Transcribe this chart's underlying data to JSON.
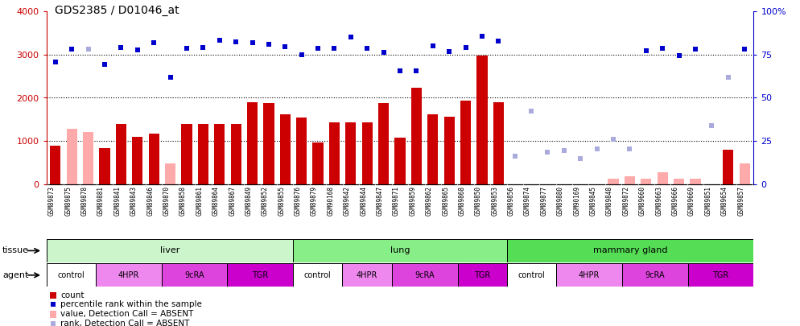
{
  "title": "GDS2385 / D01046_at",
  "samples": [
    "GSM89873",
    "GSM89875",
    "GSM89878",
    "GSM89881",
    "GSM89841",
    "GSM89843",
    "GSM89846",
    "GSM89870",
    "GSM89858",
    "GSM89861",
    "GSM89864",
    "GSM89867",
    "GSM89849",
    "GSM89852",
    "GSM89855",
    "GSM89876",
    "GSM89879",
    "GSM90168",
    "GSM89642",
    "GSM89844",
    "GSM89847",
    "GSM89871",
    "GSM89859",
    "GSM89862",
    "GSM89865",
    "GSM89868",
    "GSM89850",
    "GSM89853",
    "GSM89856",
    "GSM89874",
    "GSM89877",
    "GSM89880",
    "GSM90169",
    "GSM89845",
    "GSM89848",
    "GSM89872",
    "GSM89660",
    "GSM89663",
    "GSM89666",
    "GSM89669",
    "GSM89851",
    "GSM89654",
    "GSM89857"
  ],
  "count": [
    900,
    0,
    0,
    830,
    1390,
    1100,
    1170,
    0,
    1400,
    1400,
    1400,
    1400,
    1900,
    1870,
    1620,
    1540,
    960,
    1440,
    1440,
    1440,
    1870,
    1080,
    2230,
    1610,
    1560,
    1930,
    2980,
    1900,
    0,
    0,
    0,
    0,
    0,
    0,
    0,
    0,
    0,
    0,
    0,
    0,
    0,
    790,
    0
  ],
  "count_absent": [
    0,
    1290,
    1200,
    0,
    0,
    0,
    0,
    490,
    0,
    0,
    0,
    0,
    0,
    0,
    0,
    0,
    0,
    0,
    0,
    0,
    0,
    0,
    0,
    0,
    0,
    0,
    0,
    0,
    0,
    0,
    0,
    0,
    0,
    0,
    120,
    180,
    120,
    280,
    120,
    120,
    0,
    0,
    490
  ],
  "percentile": [
    2820,
    3120,
    0,
    2780,
    3170,
    3100,
    3280,
    2480,
    3150,
    3160,
    3330,
    3300,
    3280,
    3230,
    3180,
    3000,
    3150,
    3140,
    3400,
    3140,
    3050,
    2630,
    2630,
    3200,
    3070,
    3170,
    3430,
    3310,
    0,
    0,
    0,
    0,
    0,
    0,
    0,
    0,
    3090,
    3140,
    2970,
    3120,
    0,
    0,
    3120
  ],
  "percentile_absent": [
    0,
    0,
    3120,
    0,
    0,
    0,
    0,
    0,
    0,
    0,
    0,
    0,
    0,
    0,
    0,
    0,
    0,
    0,
    0,
    0,
    0,
    0,
    0,
    0,
    0,
    0,
    0,
    0,
    650,
    1700,
    740,
    780,
    600,
    820,
    1040,
    820,
    0,
    0,
    0,
    0,
    1350,
    2470,
    0
  ],
  "tissue_groups": [
    {
      "label": "liver",
      "start": 0,
      "end": 15,
      "color": "#ccf5cc"
    },
    {
      "label": "lung",
      "start": 15,
      "end": 28,
      "color": "#88ee88"
    },
    {
      "label": "mammary gland",
      "start": 28,
      "end": 43,
      "color": "#55dd55"
    }
  ],
  "agent_groups": [
    {
      "label": "control",
      "start": 0,
      "end": 3,
      "color": "#ffffff"
    },
    {
      "label": "4HPR",
      "start": 3,
      "end": 7,
      "color": "#ee88ee"
    },
    {
      "label": "9cRA",
      "start": 7,
      "end": 11,
      "color": "#dd44dd"
    },
    {
      "label": "TGR",
      "start": 11,
      "end": 15,
      "color": "#cc00cc"
    },
    {
      "label": "control",
      "start": 15,
      "end": 18,
      "color": "#ffffff"
    },
    {
      "label": "4HPR",
      "start": 18,
      "end": 21,
      "color": "#ee88ee"
    },
    {
      "label": "9cRA",
      "start": 21,
      "end": 25,
      "color": "#dd44dd"
    },
    {
      "label": "TGR",
      "start": 25,
      "end": 28,
      "color": "#cc00cc"
    },
    {
      "label": "control",
      "start": 28,
      "end": 31,
      "color": "#ffffff"
    },
    {
      "label": "4HPR",
      "start": 31,
      "end": 35,
      "color": "#ee88ee"
    },
    {
      "label": "9cRA",
      "start": 35,
      "end": 39,
      "color": "#dd44dd"
    },
    {
      "label": "TGR",
      "start": 39,
      "end": 43,
      "color": "#cc00cc"
    }
  ],
  "ylim_left": [
    0,
    4000
  ],
  "ylim_right": [
    0,
    100
  ],
  "yticks_left": [
    0,
    1000,
    2000,
    3000,
    4000
  ],
  "yticks_right": [
    0,
    25,
    50,
    75,
    100
  ],
  "bar_color": "#cc0000",
  "bar_absent_color": "#ffaaaa",
  "dot_color": "#0000cc",
  "dot_absent_color": "#aaaadd",
  "legend": [
    {
      "label": "count",
      "color": "#cc0000",
      "type": "bar"
    },
    {
      "label": "percentile rank within the sample",
      "color": "#0000cc",
      "type": "dot"
    },
    {
      "label": "value, Detection Call = ABSENT",
      "color": "#ffaaaa",
      "type": "bar"
    },
    {
      "label": "rank, Detection Call = ABSENT",
      "color": "#aaaadd",
      "type": "dot"
    }
  ]
}
